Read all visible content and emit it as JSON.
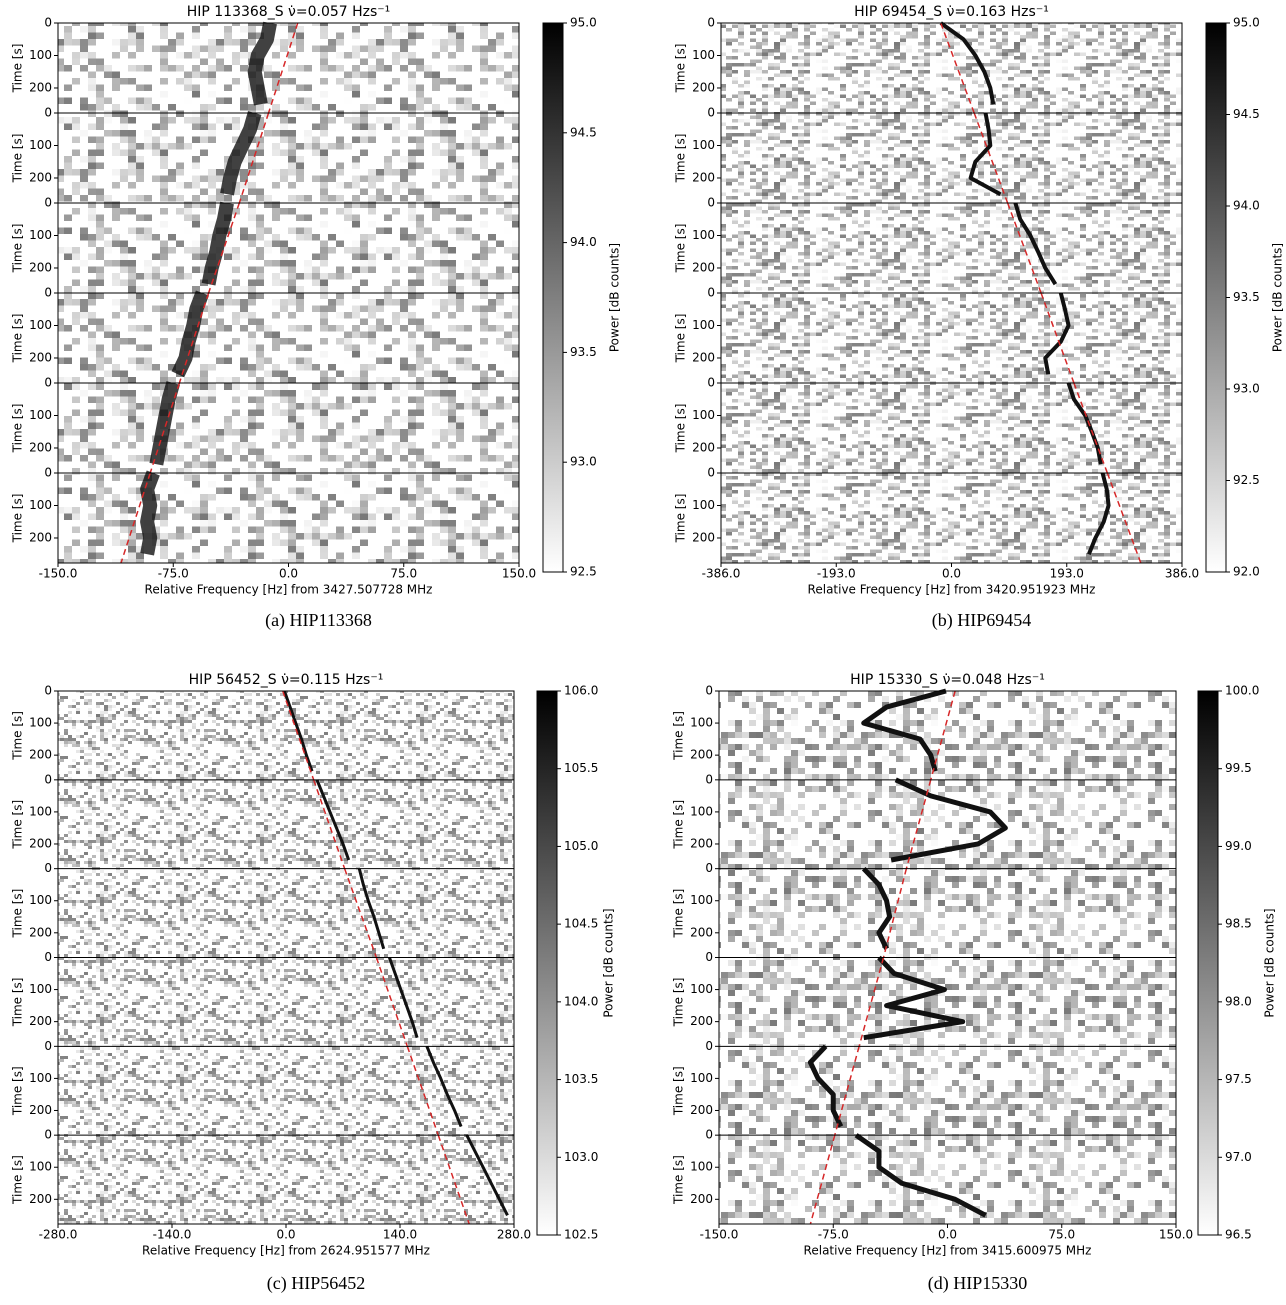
{
  "chart_data": [
    {
      "type": "waterfall",
      "title": "HIP 113368_S ν̇=0.057 Hzs⁻¹",
      "xlabel": "Relative Frequency [Hz] from 3427.507728 MHz",
      "ylabel": "Time [s]",
      "colorbar_label": "Power [dB counts]",
      "caption": "(a) HIP113368",
      "xlim": [
        -150,
        150
      ],
      "xticks": [
        {
          "value": -150,
          "label": "-150.0"
        },
        {
          "value": -75,
          "label": "-75.0"
        },
        {
          "value": 0,
          "label": "0.0"
        },
        {
          "value": 75,
          "label": "75.0"
        },
        {
          "value": 150,
          "label": "150.0"
        }
      ],
      "ylim": [
        0,
        277
      ],
      "yticks": [
        0,
        100,
        200
      ],
      "time": [
        0,
        50,
        100,
        150,
        200,
        250
      ],
      "panels": [
        {
          "signal": [
            -12,
            -14,
            -20,
            -22,
            -20,
            -18
          ],
          "drift": [
            6,
            -13
          ]
        },
        {
          "signal": [
            -22,
            -25,
            -30,
            -35,
            -38,
            -40
          ],
          "drift": [
            -13,
            -32
          ]
        },
        {
          "signal": [
            -40,
            -42,
            -45,
            -47,
            -50,
            -52
          ],
          "drift": [
            -32,
            -52
          ]
        },
        {
          "signal": [
            -56,
            -60,
            -62,
            -65,
            -67,
            -72
          ],
          "drift": [
            -52,
            -71
          ]
        },
        {
          "signal": [
            -75,
            -78,
            -80,
            -82,
            -84,
            -86
          ],
          "drift": [
            -71,
            -90
          ]
        },
        {
          "signal": [
            -88,
            -92,
            -90,
            -92,
            -90,
            -92
          ],
          "drift": [
            -90,
            -109
          ]
        }
      ],
      "clim": [
        92.5,
        95
      ],
      "cticks": [
        {
          "value": 92.5,
          "label": "92.5"
        },
        {
          "value": 93,
          "label": "93.0"
        },
        {
          "value": 93.5,
          "label": "93.5"
        },
        {
          "value": 94,
          "label": "94.0"
        },
        {
          "value": 94.5,
          "label": "94.5"
        },
        {
          "value": 95,
          "label": "95.0"
        }
      ],
      "signal_color": "#111111",
      "drift_color": "#d62728"
    },
    {
      "type": "waterfall",
      "title": "HIP 69454_S ν̇=0.163 Hzs⁻¹",
      "xlabel": "Relative Frequency [Hz] from 3420.951923 MHz",
      "ylabel": "Time [s]",
      "colorbar_label": "Power [dB counts]",
      "caption": "(b) HIP69454",
      "xlim": [
        -386,
        386
      ],
      "xticks": [
        {
          "value": -386,
          "label": "-386.0"
        },
        {
          "value": -193,
          "label": "-193.0"
        },
        {
          "value": 0,
          "label": "0.0"
        },
        {
          "value": 193,
          "label": "193.0"
        },
        {
          "value": 386,
          "label": "386.0"
        }
      ],
      "ylim": [
        0,
        277
      ],
      "yticks": [
        0,
        100,
        200
      ],
      "time": [
        0,
        50,
        100,
        150,
        200,
        250
      ],
      "panels": [
        {
          "signal": [
            -18,
            20,
            40,
            55,
            65,
            70
          ],
          "drift": [
            -18,
            38
          ]
        },
        {
          "signal": [
            57,
            62,
            65,
            40,
            32,
            82
          ],
          "drift": [
            38,
            94
          ]
        },
        {
          "signal": [
            107,
            115,
            132,
            145,
            157,
            174
          ],
          "drift": [
            94,
            150
          ]
        },
        {
          "signal": [
            183,
            190,
            196,
            183,
            157,
            162
          ],
          "drift": [
            150,
            205
          ]
        },
        {
          "signal": [
            196,
            205,
            224,
            235,
            245,
            250
          ],
          "drift": [
            205,
            261
          ]
        },
        {
          "signal": [
            253,
            260,
            263,
            255,
            241,
            230
          ],
          "drift": [
            261,
            317
          ]
        }
      ],
      "clim": [
        92,
        95
      ],
      "cticks": [
        {
          "value": 92,
          "label": "92.0"
        },
        {
          "value": 92.5,
          "label": "92.5"
        },
        {
          "value": 93,
          "label": "93.0"
        },
        {
          "value": 93.5,
          "label": "93.5"
        },
        {
          "value": 94,
          "label": "94.0"
        },
        {
          "value": 94.5,
          "label": "94.5"
        },
        {
          "value": 95,
          "label": "95.0"
        }
      ],
      "signal_color": "#111111",
      "drift_color": "#d62728"
    },
    {
      "type": "waterfall",
      "title": "HIP 56452_S ν̇=0.115 Hzs⁻¹",
      "xlabel": "Relative Frequency [Hz] from 2624.951577 MHz",
      "ylabel": "Time [s]",
      "colorbar_label": "Power [dB counts]",
      "caption": "(c) HIP56452",
      "xlim": [
        -280,
        280
      ],
      "xticks": [
        {
          "value": -280,
          "label": "-280.0"
        },
        {
          "value": -140,
          "label": "-140.0"
        },
        {
          "value": 0,
          "label": "0.0"
        },
        {
          "value": 140,
          "label": "140.0"
        },
        {
          "value": 280,
          "label": "280.0"
        }
      ],
      "ylim": [
        0,
        277
      ],
      "yticks": [
        0,
        100,
        200
      ],
      "time": [
        0,
        50,
        100,
        150,
        200,
        250
      ],
      "panels": [
        {
          "signal": [
            -2,
            5,
            12,
            19,
            25,
            32
          ],
          "drift": [
            -4,
            34
          ]
        },
        {
          "signal": [
            38,
            46,
            54,
            62,
            70,
            77
          ],
          "drift": [
            34,
            72
          ]
        },
        {
          "signal": [
            90,
            95,
            101,
            108,
            114,
            120
          ],
          "drift": [
            72,
            111
          ]
        },
        {
          "signal": [
            127,
            134,
            141,
            148,
            155,
            161
          ],
          "drift": [
            111,
            149
          ]
        },
        {
          "signal": [
            173,
            181,
            190,
            198,
            207,
            215
          ],
          "drift": [
            149,
            187
          ]
        },
        {
          "signal": [
            222,
            232,
            242,
            252,
            262,
            272
          ],
          "drift": [
            187,
            225
          ]
        }
      ],
      "clim": [
        102.5,
        106
      ],
      "cticks": [
        {
          "value": 102.5,
          "label": "102.5"
        },
        {
          "value": 103,
          "label": "103.0"
        },
        {
          "value": 103.5,
          "label": "103.5"
        },
        {
          "value": 104,
          "label": "104.0"
        },
        {
          "value": 104.5,
          "label": "104.5"
        },
        {
          "value": 105,
          "label": "105.0"
        },
        {
          "value": 105.5,
          "label": "105.5"
        },
        {
          "value": 106,
          "label": "106.0"
        }
      ],
      "signal_color": "#111111",
      "drift_color": "#d62728"
    },
    {
      "type": "waterfall",
      "title": "HIP 15330_S ν̇=0.048 Hzs⁻¹",
      "xlabel": "Relative Frequency [Hz] from 3415.600975 MHz",
      "ylabel": "Time [s]",
      "colorbar_label": "Power [dB counts]",
      "caption": "(d) HIP15330",
      "xlim": [
        -150,
        150
      ],
      "xticks": [
        {
          "value": -150,
          "label": "-150.0"
        },
        {
          "value": -75,
          "label": "-75.0"
        },
        {
          "value": 0,
          "label": "0.0"
        },
        {
          "value": 75,
          "label": "75.0"
        },
        {
          "value": 150,
          "label": "150.0"
        }
      ],
      "ylim": [
        0,
        277
      ],
      "yticks": [
        0,
        100,
        200
      ],
      "time": [
        0,
        50,
        100,
        150,
        200,
        250
      ],
      "panels": [
        {
          "signal": [
            -1,
            -40,
            -55,
            -18,
            -11,
            -8
          ],
          "drift": [
            5,
            -11
          ]
        },
        {
          "signal": [
            -34,
            -11,
            28,
            38,
            20,
            -37
          ],
          "drift": [
            -11,
            -27
          ]
        },
        {
          "signal": [
            -55,
            -45,
            -40,
            -38,
            -45,
            -40
          ],
          "drift": [
            -27,
            -42
          ]
        },
        {
          "signal": [
            -45,
            -35,
            -2,
            -40,
            10,
            -55
          ],
          "drift": [
            -42,
            -58
          ]
        },
        {
          "signal": [
            -80,
            -90,
            -85,
            -75,
            -75,
            -70
          ],
          "drift": [
            -58,
            -74
          ]
        },
        {
          "signal": [
            -60,
            -45,
            -45,
            -30,
            5,
            25
          ],
          "drift": [
            -74,
            -90
          ]
        }
      ],
      "clim": [
        96.5,
        100
      ],
      "cticks": [
        {
          "value": 96.5,
          "label": "96.5"
        },
        {
          "value": 97,
          "label": "97.0"
        },
        {
          "value": 97.5,
          "label": "97.5"
        },
        {
          "value": 98,
          "label": "98.0"
        },
        {
          "value": 98.5,
          "label": "98.5"
        },
        {
          "value": 99,
          "label": "99.0"
        },
        {
          "value": 99.5,
          "label": "99.5"
        },
        {
          "value": 100,
          "label": "100.0"
        }
      ],
      "signal_color": "#111111",
      "drift_color": "#d62728"
    }
  ]
}
